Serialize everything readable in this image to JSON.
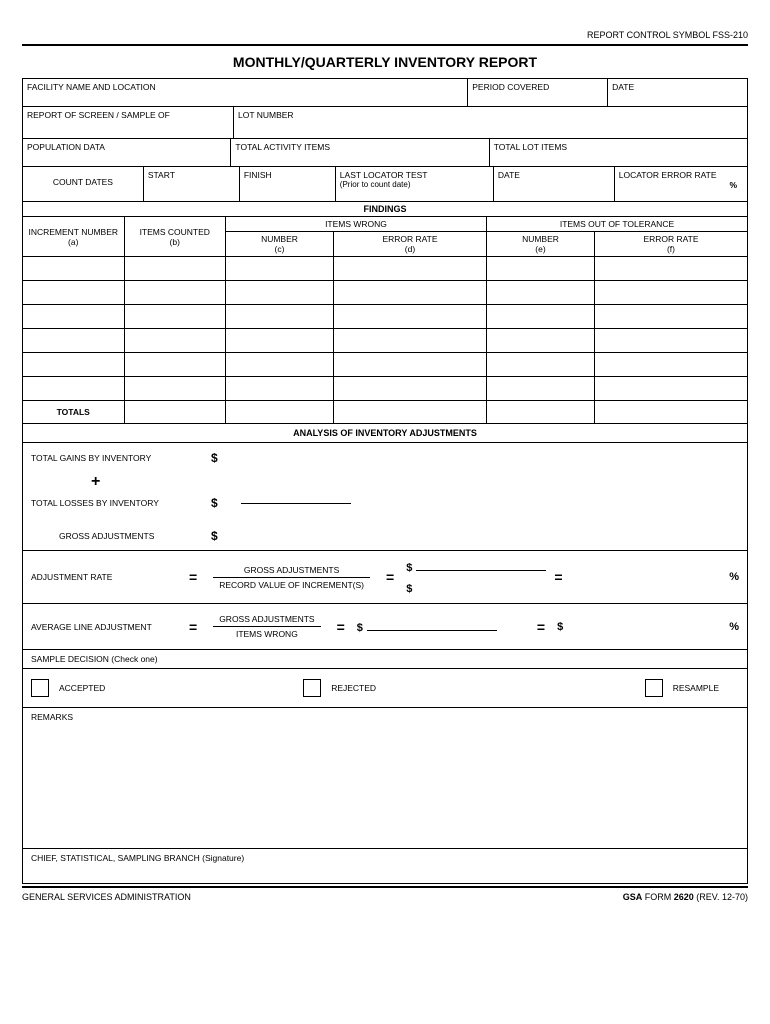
{
  "header": {
    "control_symbol": "REPORT CONTROL SYMBOL FSS-210",
    "title": "MONTHLY/QUARTERLY INVENTORY REPORT"
  },
  "row1": {
    "facility": "FACILITY NAME AND LOCATION",
    "period": "PERIOD COVERED",
    "date": "DATE"
  },
  "row2": {
    "report_of": "REPORT OF SCREEN / SAMPLE OF",
    "lot_number": "LOT NUMBER"
  },
  "row3": {
    "population": "POPULATION DATA",
    "total_activity": "TOTAL ACTIVITY ITEMS",
    "total_lot": "TOTAL LOT ITEMS"
  },
  "row4": {
    "count_dates": "COUNT DATES",
    "start": "START",
    "finish": "FINISH",
    "last_locator": "LAST LOCATOR TEST",
    "last_locator_sub": "(Prior to count date)",
    "date": "DATE",
    "locator_error": "LOCATOR ERROR RATE",
    "pct": "%"
  },
  "findings": {
    "header": "FINDINGS",
    "col_increment": "INCREMENT NUMBER",
    "col_increment_sub": "(a)",
    "col_items": "ITEMS COUNTED",
    "col_items_sub": "(b)",
    "items_wrong": "ITEMS WRONG",
    "items_tolerance": "ITEMS OUT OF TOLERANCE",
    "number": "NUMBER",
    "error_rate": "ERROR RATE",
    "sub_c": "(c)",
    "sub_d": "(d)",
    "sub_e": "(e)",
    "sub_f": "(f)",
    "totals": "TOTALS",
    "row_count": 6
  },
  "analysis": {
    "header": "ANALYSIS OF INVENTORY ADJUSTMENTS",
    "total_gains": "TOTAL GAINS BY INVENTORY",
    "total_losses": "TOTAL LOSSES BY INVENTORY",
    "gross_adj": "GROSS ADJUSTMENTS",
    "adj_rate": "ADJUSTMENT RATE",
    "gross_adjustments": "GROSS ADJUSTMENTS",
    "record_value": "RECORD VALUE OF INCREMENT(S)",
    "avg_line": "AVERAGE LINE ADJUSTMENT",
    "items_wrong": "ITEMS WRONG",
    "dollar": "$",
    "pct": "%",
    "plus": "+",
    "eq": "="
  },
  "sample": {
    "header": "SAMPLE DECISION (Check one)",
    "accepted": "ACCEPTED",
    "rejected": "REJECTED",
    "resample": "RESAMPLE"
  },
  "remarks": "REMARKS",
  "signature": "CHIEF, STATISTICAL, SAMPLING BRANCH (Signature)",
  "footer": {
    "left": "GENERAL SERVICES ADMINISTRATION",
    "right_prefix": "GSA",
    "right_form": " FORM ",
    "right_num": "2620",
    "right_rev": " (REV. 12-70)"
  },
  "colors": {
    "line": "#000000",
    "bg": "#ffffff"
  }
}
